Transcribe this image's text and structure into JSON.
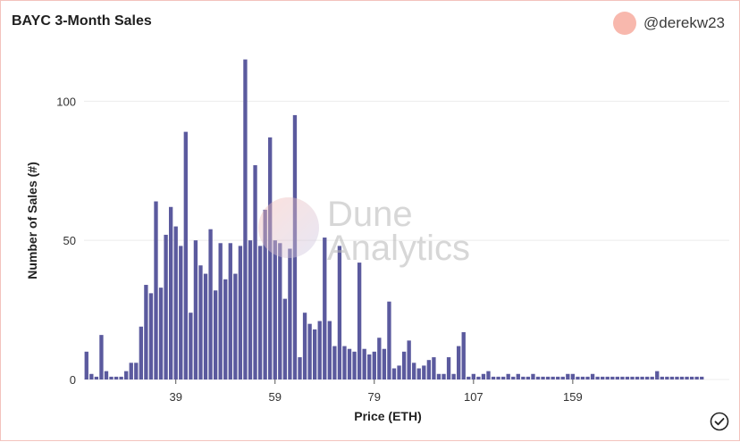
{
  "header": {
    "title": "BAYC 3-Month Sales",
    "author": "@derekw23"
  },
  "watermark": {
    "line1": "Dune",
    "line2": "Analytics"
  },
  "colors": {
    "bar": "#5b5a9e",
    "grid": "#ececec",
    "border": "#f3c3bd",
    "avatar": "#f8b8ad"
  },
  "icons": {
    "confirm": "check-circle-icon"
  },
  "chart_data": {
    "type": "bar",
    "xlabel": "Price (ETH)",
    "ylabel": "Number of Sales (#)",
    "ylim": [
      0,
      120
    ],
    "y_ticks": [
      0,
      50,
      100
    ],
    "x_tick_labels": [
      {
        "index": 18,
        "label": "39"
      },
      {
        "index": 38,
        "label": "59"
      },
      {
        "index": 58,
        "label": "79"
      },
      {
        "index": 78,
        "label": "107"
      },
      {
        "index": 98,
        "label": "159"
      }
    ],
    "grid": true,
    "legend": "none",
    "values": [
      10,
      2,
      1,
      16,
      3,
      1,
      1,
      1,
      3,
      6,
      6,
      19,
      34,
      31,
      64,
      33,
      52,
      62,
      55,
      48,
      89,
      24,
      50,
      41,
      38,
      54,
      32,
      49,
      36,
      49,
      38,
      48,
      115,
      50,
      77,
      48,
      61,
      87,
      50,
      49,
      29,
      47,
      95,
      8,
      24,
      20,
      18,
      21,
      51,
      21,
      12,
      48,
      12,
      11,
      10,
      42,
      11,
      9,
      10,
      15,
      11,
      28,
      4,
      5,
      10,
      14,
      6,
      4,
      5,
      7,
      8,
      2,
      2,
      8,
      2,
      12,
      17,
      1,
      2,
      1,
      2,
      3,
      1,
      1,
      1,
      2,
      1,
      2,
      1,
      1,
      2,
      1,
      1,
      1,
      1,
      1,
      1,
      2,
      2,
      1,
      1,
      1,
      2,
      1,
      1,
      1,
      1,
      1,
      1,
      1,
      1,
      1,
      1,
      1,
      1,
      3,
      1,
      1,
      1,
      1,
      1,
      1,
      1,
      1,
      1
    ]
  }
}
